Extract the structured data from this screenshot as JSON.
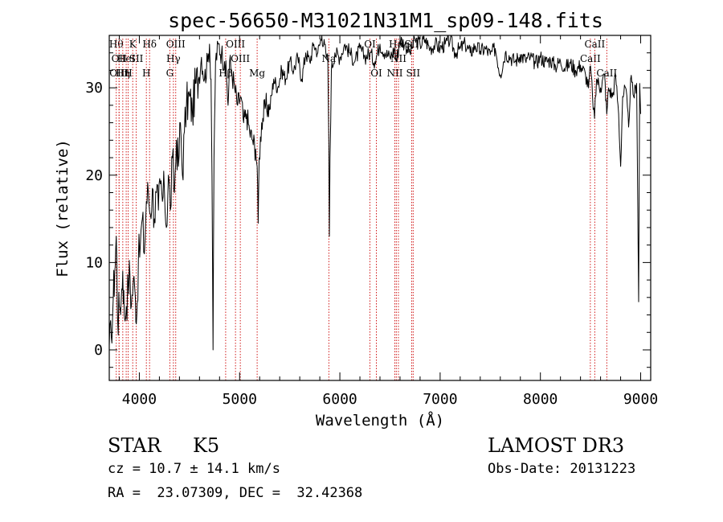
{
  "chart_data": {
    "type": "line",
    "title": "spec-56650-M31021N31M1_sp09-148.fits",
    "xlabel": "Wavelength (Å)",
    "ylabel": "Flux (relative)",
    "xlim": [
      3700,
      9100
    ],
    "ylim": [
      -3.5,
      36
    ],
    "xticks": [
      4000,
      5000,
      6000,
      7000,
      8000,
      9000
    ],
    "yticks": [
      0,
      10,
      20,
      30
    ],
    "x_minor_step": 200,
    "y_minor_step": 2,
    "spectrum_points": [
      [
        3700,
        0.5
      ],
      [
        3720,
        1.5
      ],
      [
        3740,
        6
      ],
      [
        3755,
        9
      ],
      [
        3770,
        13
      ],
      [
        3785,
        3
      ],
      [
        3800,
        5
      ],
      [
        3820,
        6
      ],
      [
        3835,
        9
      ],
      [
        3850,
        4
      ],
      [
        3870,
        5
      ],
      [
        3890,
        7.5
      ],
      [
        3905,
        9
      ],
      [
        3920,
        5
      ],
      [
        3940,
        8
      ],
      [
        3960,
        6
      ],
      [
        3975,
        4
      ],
      [
        3990,
        10
      ],
      [
        4010,
        12
      ],
      [
        4030,
        15
      ],
      [
        4050,
        11
      ],
      [
        4070,
        17
      ],
      [
        4090,
        18
      ],
      [
        4110,
        15.5
      ],
      [
        4130,
        18.5
      ],
      [
        4150,
        15
      ],
      [
        4170,
        18
      ],
      [
        4190,
        16
      ],
      [
        4210,
        19
      ],
      [
        4230,
        17
      ],
      [
        4250,
        18.5
      ],
      [
        4270,
        14
      ],
      [
        4290,
        20
      ],
      [
        4310,
        16
      ],
      [
        4330,
        22
      ],
      [
        4350,
        18
      ],
      [
        4370,
        24
      ],
      [
        4390,
        21
      ],
      [
        4410,
        26
      ],
      [
        4430,
        20
      ],
      [
        4450,
        25
      ],
      [
        4470,
        28
      ],
      [
        4500,
        29
      ],
      [
        4530,
        27
      ],
      [
        4560,
        30.5
      ],
      [
        4590,
        31
      ],
      [
        4620,
        33.5
      ],
      [
        4650,
        31
      ],
      [
        4680,
        33
      ],
      [
        4700,
        35
      ],
      [
        4715,
        31
      ],
      [
        4725,
        20
      ],
      [
        4735,
        0
      ],
      [
        4745,
        22
      ],
      [
        4760,
        33
      ],
      [
        4790,
        35
      ],
      [
        4820,
        34
      ],
      [
        4850,
        33
      ],
      [
        4870,
        31
      ],
      [
        4885,
        28
      ],
      [
        4900,
        33
      ],
      [
        4920,
        32
      ],
      [
        4950,
        30
      ],
      [
        4980,
        28
      ],
      [
        5010,
        29
      ],
      [
        5040,
        26
      ],
      [
        5070,
        27
      ],
      [
        5100,
        25
      ],
      [
        5130,
        24
      ],
      [
        5160,
        23
      ],
      [
        5175,
        21
      ],
      [
        5185,
        14.5
      ],
      [
        5195,
        22
      ],
      [
        5220,
        26
      ],
      [
        5260,
        28
      ],
      [
        5300,
        27.5
      ],
      [
        5340,
        31
      ],
      [
        5380,
        30
      ],
      [
        5420,
        32
      ],
      [
        5460,
        31
      ],
      [
        5500,
        33
      ],
      [
        5540,
        32
      ],
      [
        5580,
        33.5
      ],
      [
        5620,
        31
      ],
      [
        5660,
        34
      ],
      [
        5700,
        33
      ],
      [
        5740,
        35
      ],
      [
        5780,
        34
      ],
      [
        5820,
        36
      ],
      [
        5860,
        34
      ],
      [
        5880,
        33
      ],
      [
        5890,
        24
      ],
      [
        5895,
        13
      ],
      [
        5902,
        22
      ],
      [
        5915,
        32
      ],
      [
        5950,
        34
      ],
      [
        6000,
        33.5
      ],
      [
        6050,
        35
      ],
      [
        6100,
        34
      ],
      [
        6150,
        33
      ],
      [
        6200,
        34.5
      ],
      [
        6250,
        33.5
      ],
      [
        6300,
        34
      ],
      [
        6350,
        33
      ],
      [
        6400,
        35
      ],
      [
        6450,
        34
      ],
      [
        6500,
        33.5
      ],
      [
        6550,
        34.5
      ],
      [
        6562,
        33
      ],
      [
        6600,
        35.5
      ],
      [
        6650,
        35
      ],
      [
        6700,
        34
      ],
      [
        6750,
        35.5
      ],
      [
        6800,
        35
      ],
      [
        6850,
        35.5
      ],
      [
        6900,
        34.5
      ],
      [
        6950,
        35
      ],
      [
        7000,
        34.5
      ],
      [
        7050,
        35
      ],
      [
        7100,
        35.5
      ],
      [
        7150,
        34
      ],
      [
        7200,
        34.5
      ],
      [
        7250,
        35
      ],
      [
        7300,
        34
      ],
      [
        7350,
        34.8
      ],
      [
        7400,
        34.2
      ],
      [
        7450,
        34.5
      ],
      [
        7500,
        33.8
      ],
      [
        7550,
        34.5
      ],
      [
        7600,
        31.5
      ],
      [
        7650,
        34
      ],
      [
        7700,
        33.5
      ],
      [
        7750,
        33
      ],
      [
        7800,
        33.8
      ],
      [
        7850,
        33.2
      ],
      [
        7900,
        33.5
      ],
      [
        7950,
        32.8
      ],
      [
        8000,
        33.5
      ],
      [
        8050,
        33
      ],
      [
        8100,
        33.2
      ],
      [
        8150,
        32.5
      ],
      [
        8200,
        33
      ],
      [
        8250,
        32.3
      ],
      [
        8300,
        32.8
      ],
      [
        8350,
        32
      ],
      [
        8400,
        32.6
      ],
      [
        8450,
        31.5
      ],
      [
        8480,
        30
      ],
      [
        8500,
        32.5
      ],
      [
        8520,
        29
      ],
      [
        8540,
        26.5
      ],
      [
        8560,
        31
      ],
      [
        8600,
        30
      ],
      [
        8640,
        31.5
      ],
      [
        8662,
        27
      ],
      [
        8680,
        30
      ],
      [
        8720,
        29
      ],
      [
        8750,
        31.5
      ],
      [
        8780,
        27
      ],
      [
        8800,
        21
      ],
      [
        8820,
        29
      ],
      [
        8850,
        30
      ],
      [
        8880,
        25.5
      ],
      [
        8900,
        31
      ],
      [
        8930,
        29
      ],
      [
        8960,
        30.5
      ],
      [
        8980,
        5.5
      ],
      [
        8990,
        30.5
      ],
      [
        9000,
        27
      ]
    ],
    "line_markers": [
      {
        "x": 3770,
        "label": "Hθ",
        "row": 0
      },
      {
        "x": 3798,
        "label": "OII",
        "row": 1
      },
      {
        "x": 3798,
        "label": "OIII",
        "row": 2
      },
      {
        "x": 3835,
        "label": "Hη",
        "row": 2
      },
      {
        "x": 3869,
        "label": "HeI",
        "row": 1
      },
      {
        "x": 3889,
        "label": "H",
        "row": 2
      },
      {
        "x": 3934,
        "label": "K",
        "row": 0
      },
      {
        "x": 3969,
        "label": "SII",
        "row": 1
      },
      {
        "x": 4070,
        "label": "H",
        "row": 2
      },
      {
        "x": 4102,
        "label": "Hδ",
        "row": 0
      },
      {
        "x": 4304,
        "label": "G",
        "row": 2
      },
      {
        "x": 4340,
        "label": "Hγ",
        "row": 1
      },
      {
        "x": 4363,
        "label": "OIII",
        "row": 0
      },
      {
        "x": 4861,
        "label": "Hβ",
        "row": 2
      },
      {
        "x": 4959,
        "label": "OIII",
        "row": 0
      },
      {
        "x": 5007,
        "label": "OIII",
        "row": 1
      },
      {
        "x": 5175,
        "label": "Mg",
        "row": 2
      },
      {
        "x": 5890,
        "label": "Na",
        "row": 1
      },
      {
        "x": 6300,
        "label": "OI",
        "row": 0
      },
      {
        "x": 6364,
        "label": "OI",
        "row": 2
      },
      {
        "x": 6548,
        "label": "NII",
        "row": 2
      },
      {
        "x": 6563,
        "label": "Hα",
        "row": 0
      },
      {
        "x": 6584,
        "label": "NII",
        "row": 1
      },
      {
        "x": 6717,
        "label": "SII",
        "row": 0
      },
      {
        "x": 6731,
        "label": "SII",
        "row": 2
      },
      {
        "x": 8498,
        "label": "CaII",
        "row": 1
      },
      {
        "x": 8542,
        "label": "CaII",
        "row": 0
      },
      {
        "x": 8662,
        "label": "CaII",
        "row": 2
      }
    ],
    "marker_color": "#cc0000",
    "line_color": "#000000"
  },
  "info": {
    "class_label": "STAR",
    "subclass_label": "K5",
    "survey": "LAMOST DR3",
    "cz": "cz = 10.7 ± 14.1 km/s",
    "obs_date": "Obs-Date: 20131223",
    "radec": "RA =  23.07309, DEC =  32.42368"
  }
}
